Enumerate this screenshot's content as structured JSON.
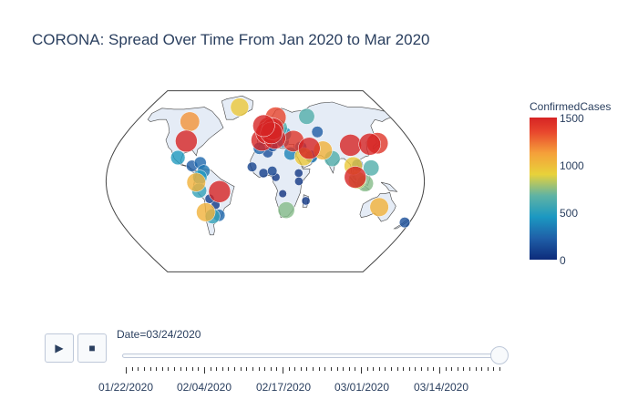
{
  "chart_data": {
    "type": "scatter",
    "title": "CORONA: Spread Over Time From Jan 2020 to Mar 2020",
    "colorbar": {
      "title": "ConfirmedCases",
      "range": [
        0,
        1500
      ],
      "ticks": [
        0,
        500,
        1000,
        1500
      ],
      "tick_labels": [
        "0",
        "500",
        "1000",
        "1500"
      ],
      "colorscale": [
        "#0d2b7a",
        "#1f5fa8",
        "#1b98c2",
        "#5fb3a4",
        "#e8d23a",
        "#f5a03a",
        "#e8462d",
        "#d62424"
      ]
    },
    "points": [
      {
        "lon": -98,
        "lat": 39,
        "value": 1500
      },
      {
        "lon": -105,
        "lat": 58,
        "value": 1100
      },
      {
        "lon": -102,
        "lat": 23,
        "value": 450
      },
      {
        "lon": -84,
        "lat": 15,
        "value": 200
      },
      {
        "lon": -75,
        "lat": 18,
        "value": 250
      },
      {
        "lon": -70,
        "lat": 10,
        "value": 300
      },
      {
        "lon": -74,
        "lat": 4,
        "value": 450
      },
      {
        "lon": -78,
        "lat": -1,
        "value": 1000
      },
      {
        "lon": -75,
        "lat": -9,
        "value": 500
      },
      {
        "lon": -52,
        "lat": -10,
        "value": 1500
      },
      {
        "lon": -64,
        "lat": -17,
        "value": 80
      },
      {
        "lon": -58,
        "lat": -23,
        "value": 60
      },
      {
        "lon": -71,
        "lat": -30,
        "value": 1000
      },
      {
        "lon": -64,
        "lat": -34,
        "value": 500
      },
      {
        "lon": -56,
        "lat": -33,
        "value": 250
      },
      {
        "lon": -4,
        "lat": 40,
        "value": 1500
      },
      {
        "lon": 2,
        "lat": 47,
        "value": 1500
      },
      {
        "lon": 12,
        "lat": 42,
        "value": 1500
      },
      {
        "lon": 10,
        "lat": 51,
        "value": 1500
      },
      {
        "lon": 5,
        "lat": 52,
        "value": 1400
      },
      {
        "lon": 8,
        "lat": 47,
        "value": 1500
      },
      {
        "lon": -2,
        "lat": 54,
        "value": 1500
      },
      {
        "lon": 15,
        "lat": 62,
        "value": 1300
      },
      {
        "lon": 19,
        "lat": 52,
        "value": 600
      },
      {
        "lon": 25,
        "lat": 46,
        "value": 400
      },
      {
        "lon": 22,
        "lat": 39,
        "value": 300
      },
      {
        "lon": 35,
        "lat": 39,
        "value": 1400
      },
      {
        "lon": 53,
        "lat": 32,
        "value": 1500
      },
      {
        "lon": 43,
        "lat": 33,
        "value": 250
      },
      {
        "lon": 45,
        "lat": 24,
        "value": 900
      },
      {
        "lon": 54,
        "lat": 24,
        "value": 300
      },
      {
        "lon": 69,
        "lat": 30,
        "value": 1000
      },
      {
        "lon": 78,
        "lat": 22,
        "value": 600
      },
      {
        "lon": 68,
        "lat": 48,
        "value": 200
      },
      {
        "lon": 60,
        "lat": 63,
        "value": 600
      },
      {
        "lon": -40,
        "lat": 72,
        "value": 900
      },
      {
        "lon": 104,
        "lat": 35,
        "value": 1500
      },
      {
        "lon": 128,
        "lat": 36,
        "value": 1500
      },
      {
        "lon": 138,
        "lat": 37,
        "value": 1400
      },
      {
        "lon": 101,
        "lat": 15,
        "value": 900
      },
      {
        "lon": 106,
        "lat": 16,
        "value": 200
      },
      {
        "lon": 102,
        "lat": 4,
        "value": 1500
      },
      {
        "lon": 104,
        "lat": 1,
        "value": 800
      },
      {
        "lon": 121,
        "lat": 13,
        "value": 600
      },
      {
        "lon": 113,
        "lat": -2,
        "value": 700
      },
      {
        "lon": 134,
        "lat": -25,
        "value": 1000
      },
      {
        "lon": 174,
        "lat": -40,
        "value": 150
      },
      {
        "lon": 3,
        "lat": 28,
        "value": 150
      },
      {
        "lon": 30,
        "lat": 27,
        "value": 350
      },
      {
        "lon": 9,
        "lat": 34,
        "value": 150
      },
      {
        "lon": -7,
        "lat": 32,
        "value": 250
      },
      {
        "lon": -15,
        "lat": 14,
        "value": 100
      },
      {
        "lon": -2,
        "lat": 8,
        "value": 80
      },
      {
        "lon": 8,
        "lat": 10,
        "value": 100
      },
      {
        "lon": 12,
        "lat": 4,
        "value": 50
      },
      {
        "lon": 38,
        "lat": 8,
        "value": 50
      },
      {
        "lon": 38,
        "lat": 0,
        "value": 50
      },
      {
        "lon": 25,
        "lat": -28,
        "value": 700
      },
      {
        "lon": 47,
        "lat": -19,
        "value": 50
      },
      {
        "lon": 20,
        "lat": -12,
        "value": 30
      }
    ]
  },
  "slider": {
    "current_label": "Date=03/24/2020",
    "tick_labels": [
      "01/22/2020",
      "02/04/2020",
      "02/17/2020",
      "03/01/2020",
      "03/14/2020"
    ],
    "position": 1.0,
    "steps": 63
  },
  "controls": {
    "play_glyph": "▶",
    "stop_glyph": "■"
  },
  "icons": {
    "play": "play-icon",
    "stop": "stop-icon"
  }
}
